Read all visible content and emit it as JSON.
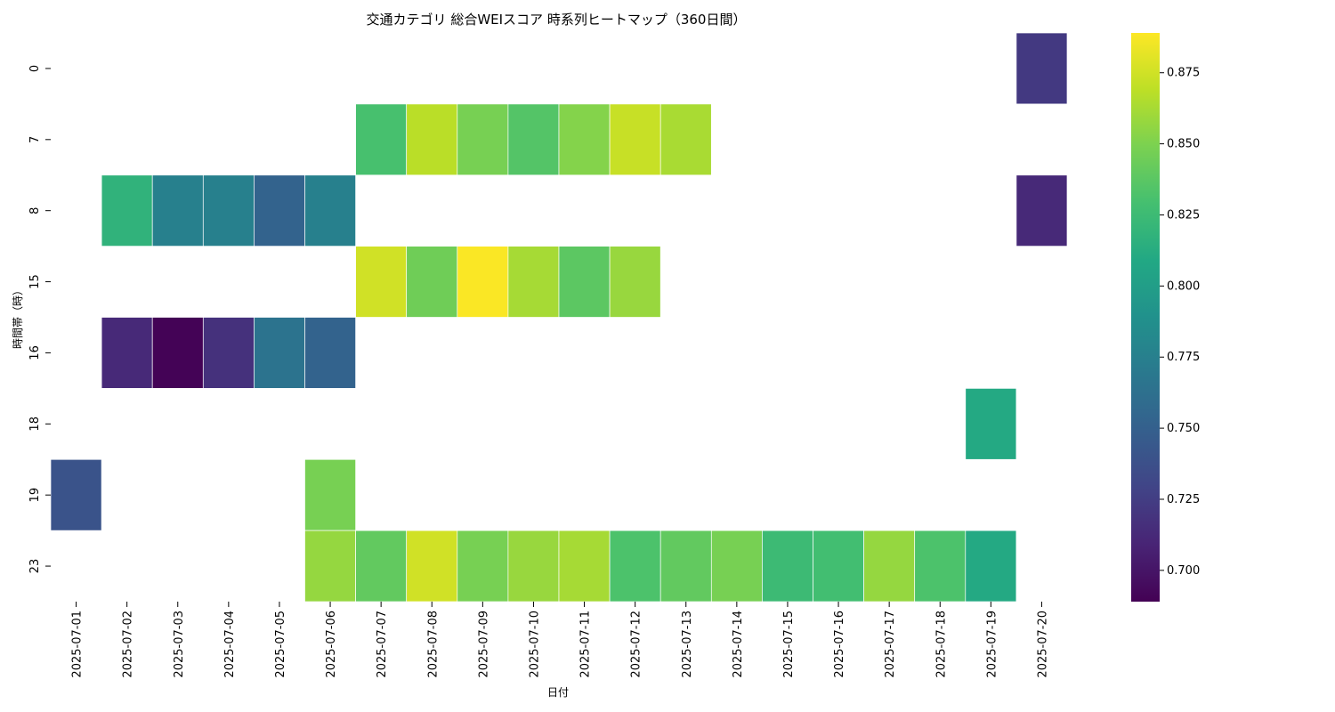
{
  "chart_data": {
    "type": "heatmap",
    "title": "交通カテゴリ 総合WEIスコア 時系列ヒートマップ（360日間）",
    "xlabel": "日付",
    "ylabel": "時間帯（時）",
    "x": [
      "2025-07-01",
      "2025-07-02",
      "2025-07-03",
      "2025-07-04",
      "2025-07-05",
      "2025-07-06",
      "2025-07-07",
      "2025-07-08",
      "2025-07-09",
      "2025-07-10",
      "2025-07-11",
      "2025-07-12",
      "2025-07-13",
      "2025-07-14",
      "2025-07-15",
      "2025-07-16",
      "2025-07-17",
      "2025-07-18",
      "2025-07-19",
      "2025-07-20"
    ],
    "y": [
      "0",
      "7",
      "8",
      "15",
      "16",
      "18",
      "19",
      "23"
    ],
    "values": [
      [
        null,
        null,
        null,
        null,
        null,
        null,
        null,
        null,
        null,
        null,
        null,
        null,
        null,
        null,
        null,
        null,
        null,
        null,
        null,
        0.722
      ],
      [
        null,
        null,
        null,
        null,
        null,
        null,
        0.83,
        0.868,
        0.848,
        0.835,
        0.852,
        0.872,
        0.863,
        null,
        null,
        null,
        null,
        null,
        null,
        null
      ],
      [
        null,
        0.818,
        0.775,
        0.775,
        0.752,
        0.775,
        null,
        null,
        null,
        null,
        null,
        null,
        null,
        null,
        null,
        null,
        null,
        null,
        null,
        0.712
      ],
      [
        null,
        null,
        null,
        null,
        null,
        null,
        0.875,
        0.845,
        0.888,
        0.862,
        0.838,
        0.858,
        null,
        null,
        null,
        null,
        null,
        null,
        null,
        null
      ],
      [
        null,
        0.712,
        0.69,
        0.717,
        0.765,
        0.752,
        null,
        null,
        null,
        null,
        null,
        null,
        null,
        null,
        null,
        null,
        null,
        null,
        null,
        null
      ],
      [
        null,
        null,
        null,
        null,
        null,
        null,
        null,
        null,
        null,
        null,
        null,
        null,
        null,
        null,
        null,
        null,
        null,
        null,
        0.81,
        null
      ],
      [
        0.74,
        null,
        null,
        null,
        null,
        0.848,
        null,
        null,
        null,
        null,
        null,
        null,
        null,
        null,
        null,
        null,
        null,
        null,
        null,
        null
      ],
      [
        null,
        null,
        null,
        null,
        null,
        0.857,
        0.84,
        0.875,
        0.848,
        0.858,
        0.862,
        0.832,
        0.84,
        0.848,
        0.825,
        0.828,
        0.857,
        0.832,
        0.81,
        null
      ]
    ],
    "colormap": "viridis",
    "vmin": 0.689,
    "vmax": 0.889,
    "colorbar_ticks": [
      0.7,
      0.725,
      0.75,
      0.775,
      0.8,
      0.825,
      0.85,
      0.875
    ],
    "colorbar_tick_labels": [
      "0.700",
      "0.725",
      "0.750",
      "0.775",
      "0.800",
      "0.825",
      "0.850",
      "0.875"
    ],
    "colors": {
      "background": "#ffffff",
      "cell_border": "#ffffff",
      "text": "#000000"
    }
  }
}
